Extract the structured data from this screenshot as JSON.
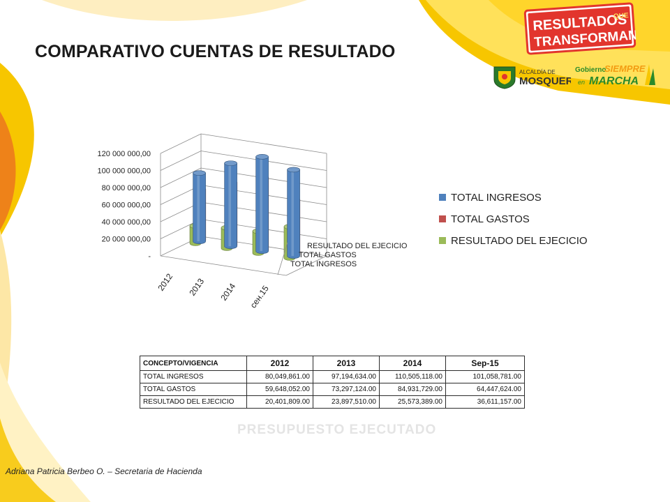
{
  "slide": {
    "title": "COMPARATIVO CUENTAS DE RESULTADO",
    "footer": "Adriana Patricia Berbeo O. – Secretaria de Hacienda",
    "ghost_text": "PRESUPUESTO EJECUTADO"
  },
  "logos": {
    "badge_line1": "RESULTADOS",
    "badge_que": "QUE",
    "badge_line2": "TRANSFORMAN",
    "alcaldia_small": "ALCALDÍA DE",
    "alcaldia_name": "MOSQUERA",
    "gobierno": "Gobierno",
    "siempre": "SIEMPRE",
    "en": "en",
    "marcha": "MARCHA"
  },
  "colors": {
    "accent_yellow": "#f7c600",
    "accent_orange": "#ec7a1c",
    "badge_red": "#e2352d",
    "ingresos": "#4f81bd",
    "gastos": "#c0504d",
    "resultado": "#9bbb59"
  },
  "chart_data": {
    "type": "bar",
    "title": "",
    "categories": [
      "2012",
      "2013",
      "2014",
      "сен.15"
    ],
    "series": [
      {
        "name": "TOTAL INGRESOS",
        "values": [
          80049861,
          97194634,
          110505118,
          101058781
        ]
      },
      {
        "name": "TOTAL GASTOS",
        "values": [
          59648052,
          73297124,
          84931729,
          64447624
        ]
      },
      {
        "name": "RESULTADO DEL EJECICIO",
        "values": [
          20401809,
          23897510,
          25573389,
          36611157
        ]
      }
    ],
    "depth_labels": [
      "RESULTADO DEL EJECICIO",
      "TOTAL GASTOS",
      "TOTAL INGRESOS"
    ],
    "y_ticks": [
      "-",
      "20 000 000,00",
      "40 000 000,00",
      "60 000 000,00",
      "80 000 000,00",
      "100 000 000,00",
      "120 000 000,00"
    ],
    "ylim": [
      0,
      120000000
    ],
    "legend_position": "right",
    "grid": true
  },
  "table": {
    "headers": [
      "CONCEPTO/VIGENCIA",
      "2012",
      "2013",
      "2014",
      "Sep-15"
    ],
    "rows": [
      [
        "TOTAL INGRESOS",
        "80,049,861.00",
        "97,194,634.00",
        "110,505,118.00",
        "101,058,781.00"
      ],
      [
        "TOTAL GASTOS",
        "59,648,052.00",
        "73,297,124.00",
        "84,931,729.00",
        "64,447,624.00"
      ],
      [
        "RESULTADO DEL EJECICIO",
        "20,401,809.00",
        "23,897,510.00",
        "25,573,389.00",
        "36,611,157.00"
      ]
    ]
  }
}
